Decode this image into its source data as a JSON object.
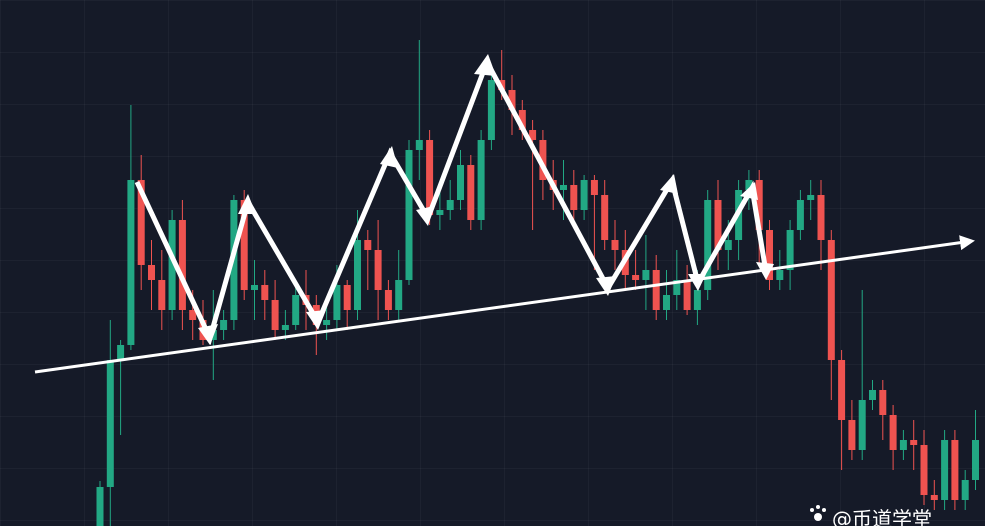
{
  "chart_data": {
    "type": "candlestick",
    "categories": [
      null,
      null,
      null,
      null,
      null,
      null,
      null,
      null,
      null,
      null,
      null,
      null,
      null,
      null,
      null,
      null,
      null,
      null,
      null,
      null,
      null,
      null,
      null,
      null,
      null,
      null,
      null,
      null,
      null,
      null,
      null,
      null,
      null,
      null,
      null,
      null,
      null,
      null,
      null,
      null,
      null,
      null,
      null,
      null,
      null,
      null,
      null,
      null,
      null,
      null,
      null,
      null,
      null,
      null,
      null,
      null,
      null,
      null,
      null,
      null,
      null,
      null,
      null,
      null,
      null,
      null,
      null,
      null,
      null,
      null,
      null,
      null,
      null,
      null,
      null,
      null,
      null,
      null,
      null,
      null,
      null,
      null,
      null,
      null,
      null,
      null
    ],
    "open": [
      0,
      39,
      166,
      181,
      346,
      261,
      246,
      216,
      306,
      216,
      206,
      186,
      196,
      206,
      326,
      236,
      241,
      226,
      196,
      201,
      231,
      221,
      201,
      206,
      241,
      216,
      286,
      276,
      236,
      216,
      246,
      376,
      386,
      311,
      316,
      326,
      361,
      306,
      386,
      446,
      436,
      416,
      396,
      386,
      346,
      336,
      341,
      316,
      346,
      331,
      286,
      276,
      251,
      246,
      256,
      216,
      231,
      246,
      216,
      236,
      326,
      276,
      286,
      336,
      346,
      296,
      246,
      256,
      296,
      326,
      331,
      286,
      166,
      106,
      76,
      126,
      136,
      111,
      76,
      86,
      81,
      31,
      26,
      86,
      26,
      46
    ],
    "high": [
      45,
      206,
      186,
      421,
      371,
      286,
      276,
      316,
      326,
      236,
      226,
      236,
      216,
      331,
      336,
      266,
      256,
      246,
      216,
      241,
      256,
      231,
      226,
      261,
      246,
      316,
      296,
      306,
      246,
      276,
      386,
      486,
      396,
      336,
      346,
      376,
      371,
      396,
      456,
      476,
      451,
      426,
      406,
      396,
      366,
      366,
      356,
      351,
      351,
      346,
      306,
      296,
      276,
      291,
      271,
      256,
      276,
      261,
      256,
      336,
      346,
      306,
      346,
      356,
      356,
      306,
      276,
      306,
      336,
      346,
      346,
      296,
      176,
      126,
      236,
      146,
      146,
      121,
      96,
      106,
      96,
      46,
      96,
      96,
      56,
      116
    ],
    "low": [
      0,
      0,
      91,
      176,
      236,
      216,
      196,
      206,
      196,
      186,
      181,
      146,
      186,
      196,
      226,
      206,
      206,
      186,
      186,
      196,
      196,
      171,
      186,
      196,
      196,
      206,
      236,
      206,
      206,
      206,
      241,
      346,
      301,
      296,
      306,
      316,
      296,
      296,
      376,
      426,
      391,
      386,
      296,
      326,
      316,
      306,
      306,
      306,
      256,
      276,
      256,
      236,
      236,
      216,
      206,
      206,
      216,
      211,
      201,
      226,
      256,
      256,
      266,
      316,
      261,
      236,
      236,
      236,
      286,
      306,
      256,
      126,
      56,
      66,
      66,
      116,
      86,
      56,
      66,
      56,
      21,
      16,
      16,
      16,
      16,
      36
    ],
    "close": [
      39,
      166,
      181,
      346,
      261,
      246,
      216,
      306,
      216,
      206,
      186,
      196,
      206,
      326,
      236,
      241,
      226,
      196,
      201,
      231,
      221,
      201,
      206,
      241,
      216,
      286,
      276,
      236,
      216,
      246,
      376,
      386,
      311,
      316,
      326,
      361,
      306,
      386,
      446,
      436,
      416,
      396,
      386,
      346,
      336,
      341,
      316,
      346,
      331,
      286,
      276,
      251,
      246,
      256,
      216,
      231,
      246,
      216,
      236,
      326,
      276,
      286,
      336,
      346,
      296,
      246,
      256,
      296,
      326,
      331,
      286,
      166,
      106,
      76,
      126,
      136,
      111,
      76,
      86,
      81,
      31,
      26,
      86,
      26,
      46,
      86
    ],
    "up_color": "#22a884",
    "down_color": "#ef5350",
    "ylim": [
      0,
      526
    ]
  },
  "watermark": "@币道学堂"
}
